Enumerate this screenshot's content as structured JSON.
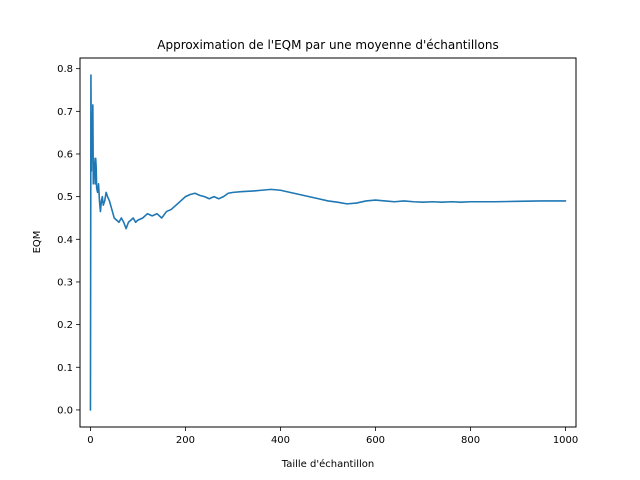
{
  "chart_data": {
    "type": "line",
    "title": "Approximation de l'EQM par une moyenne d'échantillons",
    "xlabel": "Taille d'échantillon",
    "ylabel": "EQM",
    "xlim": [
      -22,
      1022
    ],
    "ylim": [
      -0.04,
      0.825
    ],
    "xticks": [
      0,
      200,
      400,
      600,
      800,
      1000
    ],
    "yticks": [
      0.0,
      0.1,
      0.2,
      0.3,
      0.4,
      0.5,
      0.6,
      0.7,
      0.8
    ],
    "ytick_labels": [
      "0.0",
      "0.1",
      "0.2",
      "0.3",
      "0.4",
      "0.5",
      "0.6",
      "0.7",
      "0.8"
    ],
    "grid": false,
    "legend": "none",
    "series": [
      {
        "color": "#1f77b4",
        "x": [
          0,
          1,
          2,
          3,
          4,
          5,
          6,
          7,
          8,
          9,
          10,
          11,
          12,
          13,
          15,
          17,
          19,
          21,
          23,
          25,
          27,
          30,
          33,
          36,
          40,
          45,
          50,
          55,
          60,
          65,
          70,
          75,
          80,
          85,
          90,
          95,
          100,
          110,
          120,
          130,
          140,
          150,
          160,
          170,
          180,
          190,
          200,
          210,
          220,
          230,
          240,
          250,
          260,
          270,
          280,
          290,
          300,
          320,
          340,
          360,
          380,
          400,
          420,
          440,
          460,
          480,
          500,
          520,
          540,
          560,
          580,
          600,
          620,
          640,
          660,
          680,
          700,
          720,
          740,
          760,
          780,
          800,
          850,
          900,
          950,
          1000
        ],
        "y": [
          0.0,
          0.785,
          0.56,
          0.69,
          0.6,
          0.715,
          0.53,
          0.59,
          0.55,
          0.58,
          0.53,
          0.59,
          0.57,
          0.52,
          0.51,
          0.53,
          0.49,
          0.465,
          0.49,
          0.5,
          0.48,
          0.49,
          0.51,
          0.5,
          0.49,
          0.47,
          0.45,
          0.445,
          0.44,
          0.45,
          0.44,
          0.425,
          0.44,
          0.445,
          0.45,
          0.44,
          0.445,
          0.45,
          0.46,
          0.455,
          0.46,
          0.45,
          0.465,
          0.47,
          0.48,
          0.49,
          0.5,
          0.505,
          0.508,
          0.503,
          0.5,
          0.495,
          0.5,
          0.495,
          0.5,
          0.508,
          0.51,
          0.512,
          0.513,
          0.515,
          0.517,
          0.515,
          0.51,
          0.505,
          0.5,
          0.495,
          0.49,
          0.487,
          0.483,
          0.485,
          0.49,
          0.492,
          0.49,
          0.488,
          0.49,
          0.488,
          0.487,
          0.488,
          0.487,
          0.488,
          0.487,
          0.488,
          0.488,
          0.489,
          0.49,
          0.49
        ]
      }
    ]
  }
}
